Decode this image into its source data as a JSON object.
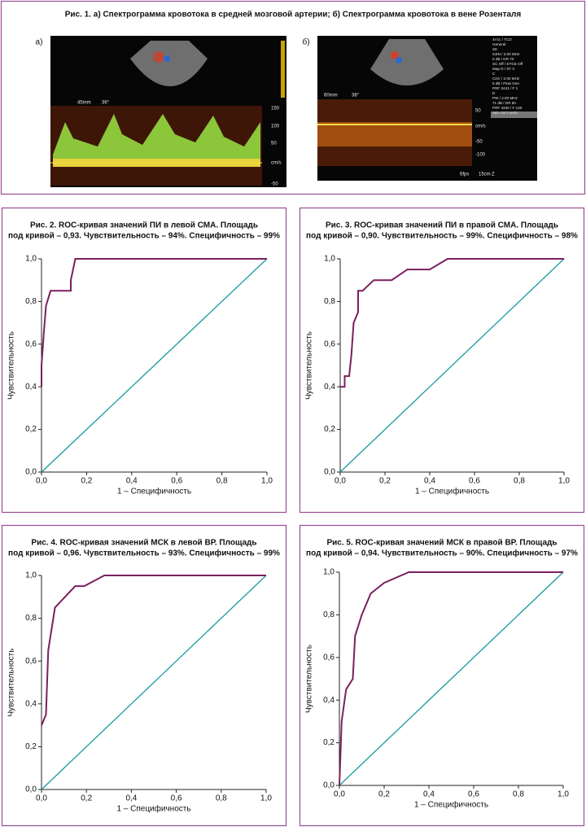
{
  "figure1": {
    "title": "Рис. 1. а) Спектрограмма кровотока в средней мозговой артерии; б) Спектрограмма кровотока в вене Розенталя",
    "panels": [
      {
        "label": "а)",
        "texts": [
          "45mm",
          "36°",
          "150",
          "100",
          "50",
          "cm/s",
          "-50"
        ]
      },
      {
        "label": "б)",
        "texts": [
          "60mm",
          "38°",
          "50",
          "cm/s",
          "-50",
          "-100",
          "6fps",
          "15cm",
          "Z"
        ],
        "settings": [
          "4V1c / TCD",
          "General",
          "2D",
          "GEN / 3.00 MHz",
          "0 dB / DR 70",
          "SC Off / DTCE Off",
          "Map D / ST 3",
          "C",
          "CDV / 2.00 MHz",
          "5 dB / Flow Gen",
          "PRF 2441 / F 1",
          "D",
          "PW / 2.00 MHz",
          "71 dB / DR 50",
          "PRF 4340 / F 130",
          "Vel=-13.7 cm/s"
        ]
      }
    ]
  },
  "chart_data": [
    {
      "type": "line",
      "title": [
        "Рис. 2. ROC-кривая значений ПИ в левой СМА. Площадь",
        "под кривой – 0,93. Чувствительность – 94%. Специфичность – 99%"
      ],
      "xlabel": "1 – Специфичность",
      "ylabel": "Чувствительность",
      "xlim": [
        0,
        1
      ],
      "ylim": [
        0,
        1
      ],
      "xticks": [
        {
          "value": 0,
          "label": "0,0"
        },
        {
          "value": 0.2,
          "label": "0,2"
        },
        {
          "value": 0.4,
          "label": "0,4"
        },
        {
          "value": 0.6,
          "label": "0,6"
        },
        {
          "value": 0.8,
          "label": "0,8"
        },
        {
          "value": 1,
          "label": "1,0"
        }
      ],
      "yticks": [
        {
          "value": 0,
          "label": "0,0"
        },
        {
          "value": 0.2,
          "label": "0,2"
        },
        {
          "value": 0.4,
          "label": "0,4"
        },
        {
          "value": 0.6,
          "label": "0,6"
        },
        {
          "value": 0.8,
          "label": "0,8"
        },
        {
          "value": 1,
          "label": "1,0"
        }
      ],
      "series": [
        {
          "color": "#7b1f5e",
          "x": [
            0,
            0,
            0.01,
            0.02,
            0.04,
            0.13,
            0.13,
            0.15,
            1
          ],
          "values": [
            0.4,
            0.5,
            0.65,
            0.78,
            0.85,
            0.85,
            0.9,
            1,
            1
          ]
        },
        {
          "color": "#1a9aa0",
          "x": [
            0,
            1
          ],
          "values": [
            0,
            1
          ]
        }
      ]
    },
    {
      "type": "line",
      "title": [
        "Рис. 3. ROC-кривая значений ПИ в правой СМА. Площадь",
        "под кривой – 0,90. Чувствительность – 99%. Специфичность – 98%"
      ],
      "xlabel": "1 – Специфичность",
      "ylabel": "Чувствительность",
      "xlim": [
        0,
        1
      ],
      "ylim": [
        0,
        1
      ],
      "xticks": [
        {
          "value": 0,
          "label": "0,0"
        },
        {
          "value": 0.2,
          "label": "0,2"
        },
        {
          "value": 0.4,
          "label": "0,4"
        },
        {
          "value": 0.6,
          "label": "0,6"
        },
        {
          "value": 0.8,
          "label": "0,8"
        },
        {
          "value": 1,
          "label": "1,0"
        }
      ],
      "yticks": [
        {
          "value": 0,
          "label": "0,0"
        },
        {
          "value": 0.2,
          "label": "0,2"
        },
        {
          "value": 0.4,
          "label": "0,4"
        },
        {
          "value": 0.6,
          "label": "0,6"
        },
        {
          "value": 0.8,
          "label": "0,8"
        },
        {
          "value": 1,
          "label": "1,0"
        }
      ],
      "series": [
        {
          "color": "#7b1f5e",
          "x": [
            0,
            0.02,
            0.02,
            0.04,
            0.05,
            0.06,
            0.08,
            0.08,
            0.1,
            0.15,
            0.23,
            0.3,
            0.4,
            0.48,
            1
          ],
          "values": [
            0.4,
            0.4,
            0.45,
            0.45,
            0.55,
            0.7,
            0.75,
            0.85,
            0.85,
            0.9,
            0.9,
            0.95,
            0.95,
            1,
            1
          ]
        },
        {
          "color": "#1a9aa0",
          "x": [
            0,
            1
          ],
          "values": [
            0,
            1
          ]
        }
      ]
    },
    {
      "type": "line",
      "title": [
        "Рис. 4. ROC-кривая значений МСК в левой ВР. Площадь",
        "под кривой – 0,96. Чувствительность – 93%. Специфичность – 99%"
      ],
      "xlabel": "1 – Специфичность",
      "ylabel": "Чувствительность",
      "xlim": [
        0,
        1
      ],
      "ylim": [
        0,
        1
      ],
      "xticks": [
        {
          "value": 0,
          "label": "0,0"
        },
        {
          "value": 0.2,
          "label": "0,2"
        },
        {
          "value": 0.4,
          "label": "0,4"
        },
        {
          "value": 0.6,
          "label": "0,6"
        },
        {
          "value": 0.8,
          "label": "0,8"
        },
        {
          "value": 1,
          "label": "1,0"
        }
      ],
      "yticks": [
        {
          "value": 0,
          "label": "0,0"
        },
        {
          "value": 0.2,
          "label": "0,2"
        },
        {
          "value": 0.4,
          "label": "0,4"
        },
        {
          "value": 0.6,
          "label": "0,6"
        },
        {
          "value": 0.8,
          "label": "0,8"
        },
        {
          "value": 1,
          "label": "1,0"
        }
      ],
      "series": [
        {
          "color": "#7b1f5e",
          "x": [
            0,
            0.02,
            0.03,
            0.06,
            0.15,
            0.19,
            0.28,
            1
          ],
          "values": [
            0.3,
            0.35,
            0.65,
            0.85,
            0.95,
            0.95,
            1,
            1
          ]
        },
        {
          "color": "#1a9aa0",
          "x": [
            0,
            1
          ],
          "values": [
            0,
            1
          ]
        }
      ]
    },
    {
      "type": "line",
      "title": [
        "Рис. 5. ROC-кривая значений МСК в правой ВР. Площадь",
        "под кривой – 0,94. Чувствительность – 90%. Специфичность – 97%"
      ],
      "xlabel": "1 – Специфичность",
      "ylabel": "Чувствительность",
      "xlim": [
        0,
        1
      ],
      "ylim": [
        0,
        1
      ],
      "xticks": [
        {
          "value": 0,
          "label": "0,0"
        },
        {
          "value": 0.2,
          "label": "0,2"
        },
        {
          "value": 0.4,
          "label": "0,4"
        },
        {
          "value": 0.6,
          "label": "0,6"
        },
        {
          "value": 0.8,
          "label": "0,8"
        },
        {
          "value": 1,
          "label": "1,0"
        }
      ],
      "yticks": [
        {
          "value": 0,
          "label": "0,0"
        },
        {
          "value": 0.2,
          "label": "0,2"
        },
        {
          "value": 0.4,
          "label": "0,4"
        },
        {
          "value": 0.6,
          "label": "0,6"
        },
        {
          "value": 0.8,
          "label": "0,8"
        },
        {
          "value": 1,
          "label": "1,0"
        }
      ],
      "series": [
        {
          "color": "#7b1f5e",
          "x": [
            0,
            0.01,
            0.03,
            0.06,
            0.07,
            0.1,
            0.14,
            0.2,
            0.31,
            1
          ],
          "values": [
            0,
            0.3,
            0.45,
            0.5,
            0.7,
            0.8,
            0.9,
            0.95,
            1,
            1
          ]
        },
        {
          "color": "#1a9aa0",
          "x": [
            0,
            1
          ],
          "values": [
            0,
            1
          ]
        }
      ]
    }
  ]
}
